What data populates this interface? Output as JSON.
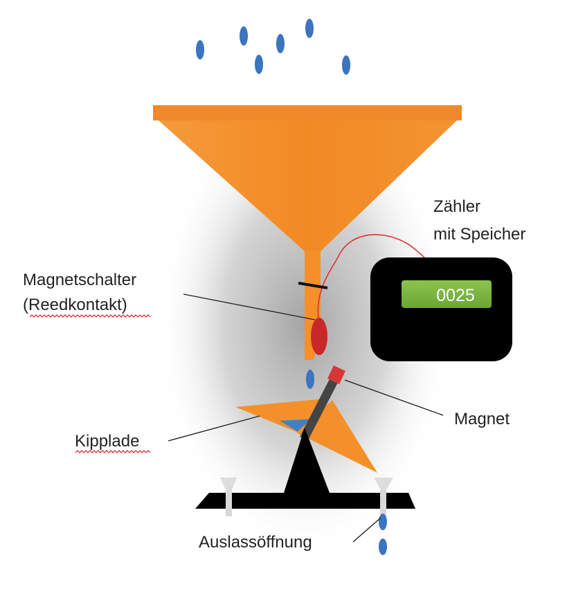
{
  "labels": {
    "counter_line1": "Zähler",
    "counter_line2": "mit Speicher",
    "switch_line1": "Magnetschalter",
    "switch_line2": "(Reedkontakt)",
    "magnet": "Magnet",
    "tipping_tray": "Kipplade",
    "outlet": "Auslassöffnung"
  },
  "counter": {
    "display_value": "0025"
  },
  "colors": {
    "funnel_orange": "#f4902a",
    "funnel_rim": "#ee8a2c",
    "water_drop": "#3b74bf",
    "counter_body": "#000000",
    "counter_display": "#7bb540",
    "reed_switch": "#c8282a",
    "wire": "#e03030",
    "magnet_tip": "#d8373a",
    "magnet_bar": "#444444",
    "tray_water": "#3f82c4",
    "base": "#000000",
    "outlet_tube": "#d9d9d9"
  }
}
